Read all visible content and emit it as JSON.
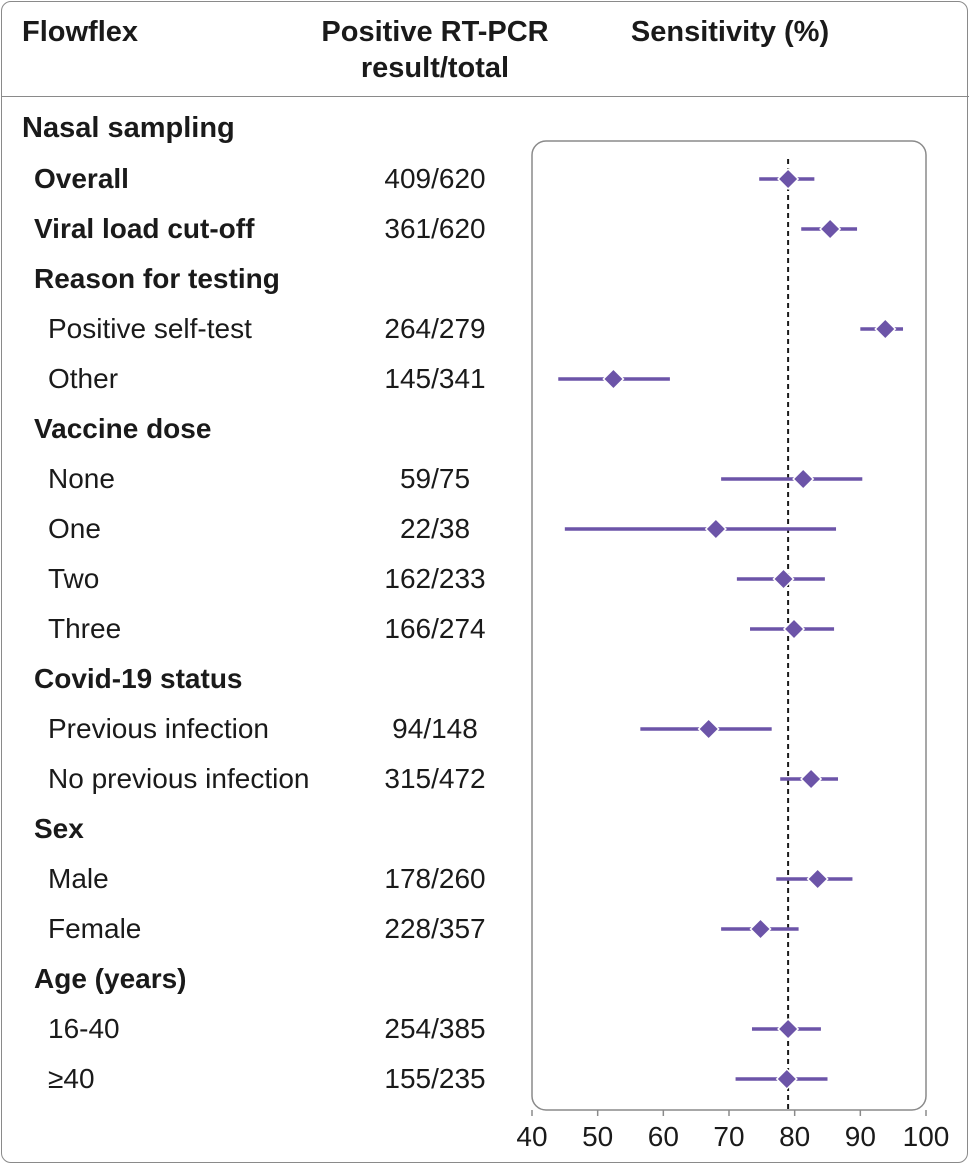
{
  "header": {
    "col1": "Flowflex",
    "col2_line1": "Positive RT-PCR",
    "col2_line2": "result/total",
    "col3": "Sensitivity (%)"
  },
  "section_title": "Nasal sampling",
  "rows": [
    {
      "label": "Overall",
      "count": "409/620",
      "bold": true,
      "has_data": true
    },
    {
      "label": "Viral load cut-off",
      "count": "361/620",
      "bold": true,
      "has_data": true
    },
    {
      "label": "Reason for testing",
      "count": "",
      "bold": true,
      "has_data": false
    },
    {
      "label": "Positive self-test",
      "count": "264/279",
      "bold": false,
      "has_data": true
    },
    {
      "label": "Other",
      "count": "145/341",
      "bold": false,
      "has_data": true
    },
    {
      "label": "Vaccine dose",
      "count": "",
      "bold": true,
      "has_data": false
    },
    {
      "label": "None",
      "count": "59/75",
      "bold": false,
      "has_data": true
    },
    {
      "label": "One",
      "count": "22/38",
      "bold": false,
      "has_data": true
    },
    {
      "label": "Two",
      "count": "162/233",
      "bold": false,
      "has_data": true
    },
    {
      "label": "Three",
      "count": "166/274",
      "bold": false,
      "has_data": true
    },
    {
      "label": "Covid-19 status",
      "count": "",
      "bold": true,
      "has_data": false
    },
    {
      "label": "Previous infection",
      "count": "94/148",
      "bold": false,
      "has_data": true
    },
    {
      "label": "No previous infection",
      "count": "315/472",
      "bold": false,
      "has_data": true
    },
    {
      "label": "Sex",
      "count": "",
      "bold": true,
      "has_data": false
    },
    {
      "label": "Male",
      "count": "178/260",
      "bold": false,
      "has_data": true
    },
    {
      "label": "Female",
      "count": "228/357",
      "bold": false,
      "has_data": true
    },
    {
      "label": "Age (years)",
      "count": "",
      "bold": true,
      "has_data": false
    },
    {
      "label": "16-40",
      "count": "254/385",
      "bold": false,
      "has_data": true
    },
    {
      "label": "≥40",
      "count": "155/235",
      "bold": false,
      "has_data": true
    }
  ],
  "chart_data": {
    "type": "forest",
    "xlabel": "",
    "xlim": [
      40,
      100
    ],
    "xticks": [
      40,
      50,
      60,
      70,
      80,
      90,
      100
    ],
    "reference_line": 79,
    "marker_color": "#6c54a8",
    "points": [
      {
        "label": "Overall",
        "estimate": 79.0,
        "lower": 74.6,
        "upper": 83.0
      },
      {
        "label": "Viral load cut-off",
        "estimate": 85.4,
        "lower": 81.0,
        "upper": 89.5
      },
      {
        "label": "Positive self-test",
        "estimate": 93.8,
        "lower": 90.0,
        "upper": 96.5
      },
      {
        "label": "Other",
        "estimate": 52.4,
        "lower": 44.0,
        "upper": 61.0
      },
      {
        "label": "None",
        "estimate": 81.3,
        "lower": 68.8,
        "upper": 90.3
      },
      {
        "label": "One",
        "estimate": 68.0,
        "lower": 45.0,
        "upper": 86.3
      },
      {
        "label": "Two",
        "estimate": 78.3,
        "lower": 71.2,
        "upper": 84.6
      },
      {
        "label": "Three",
        "estimate": 79.9,
        "lower": 73.2,
        "upper": 86.0
      },
      {
        "label": "Previous infection",
        "estimate": 66.9,
        "lower": 56.5,
        "upper": 76.5
      },
      {
        "label": "No previous infection",
        "estimate": 82.5,
        "lower": 77.8,
        "upper": 86.6
      },
      {
        "label": "Male",
        "estimate": 83.5,
        "lower": 77.2,
        "upper": 88.8
      },
      {
        "label": "Female",
        "estimate": 74.8,
        "lower": 68.8,
        "upper": 80.6
      },
      {
        "label": "16-40",
        "estimate": 79.0,
        "lower": 73.5,
        "upper": 84.0
      },
      {
        "label": "≥40",
        "estimate": 78.8,
        "lower": 71.0,
        "upper": 85.0
      }
    ]
  }
}
